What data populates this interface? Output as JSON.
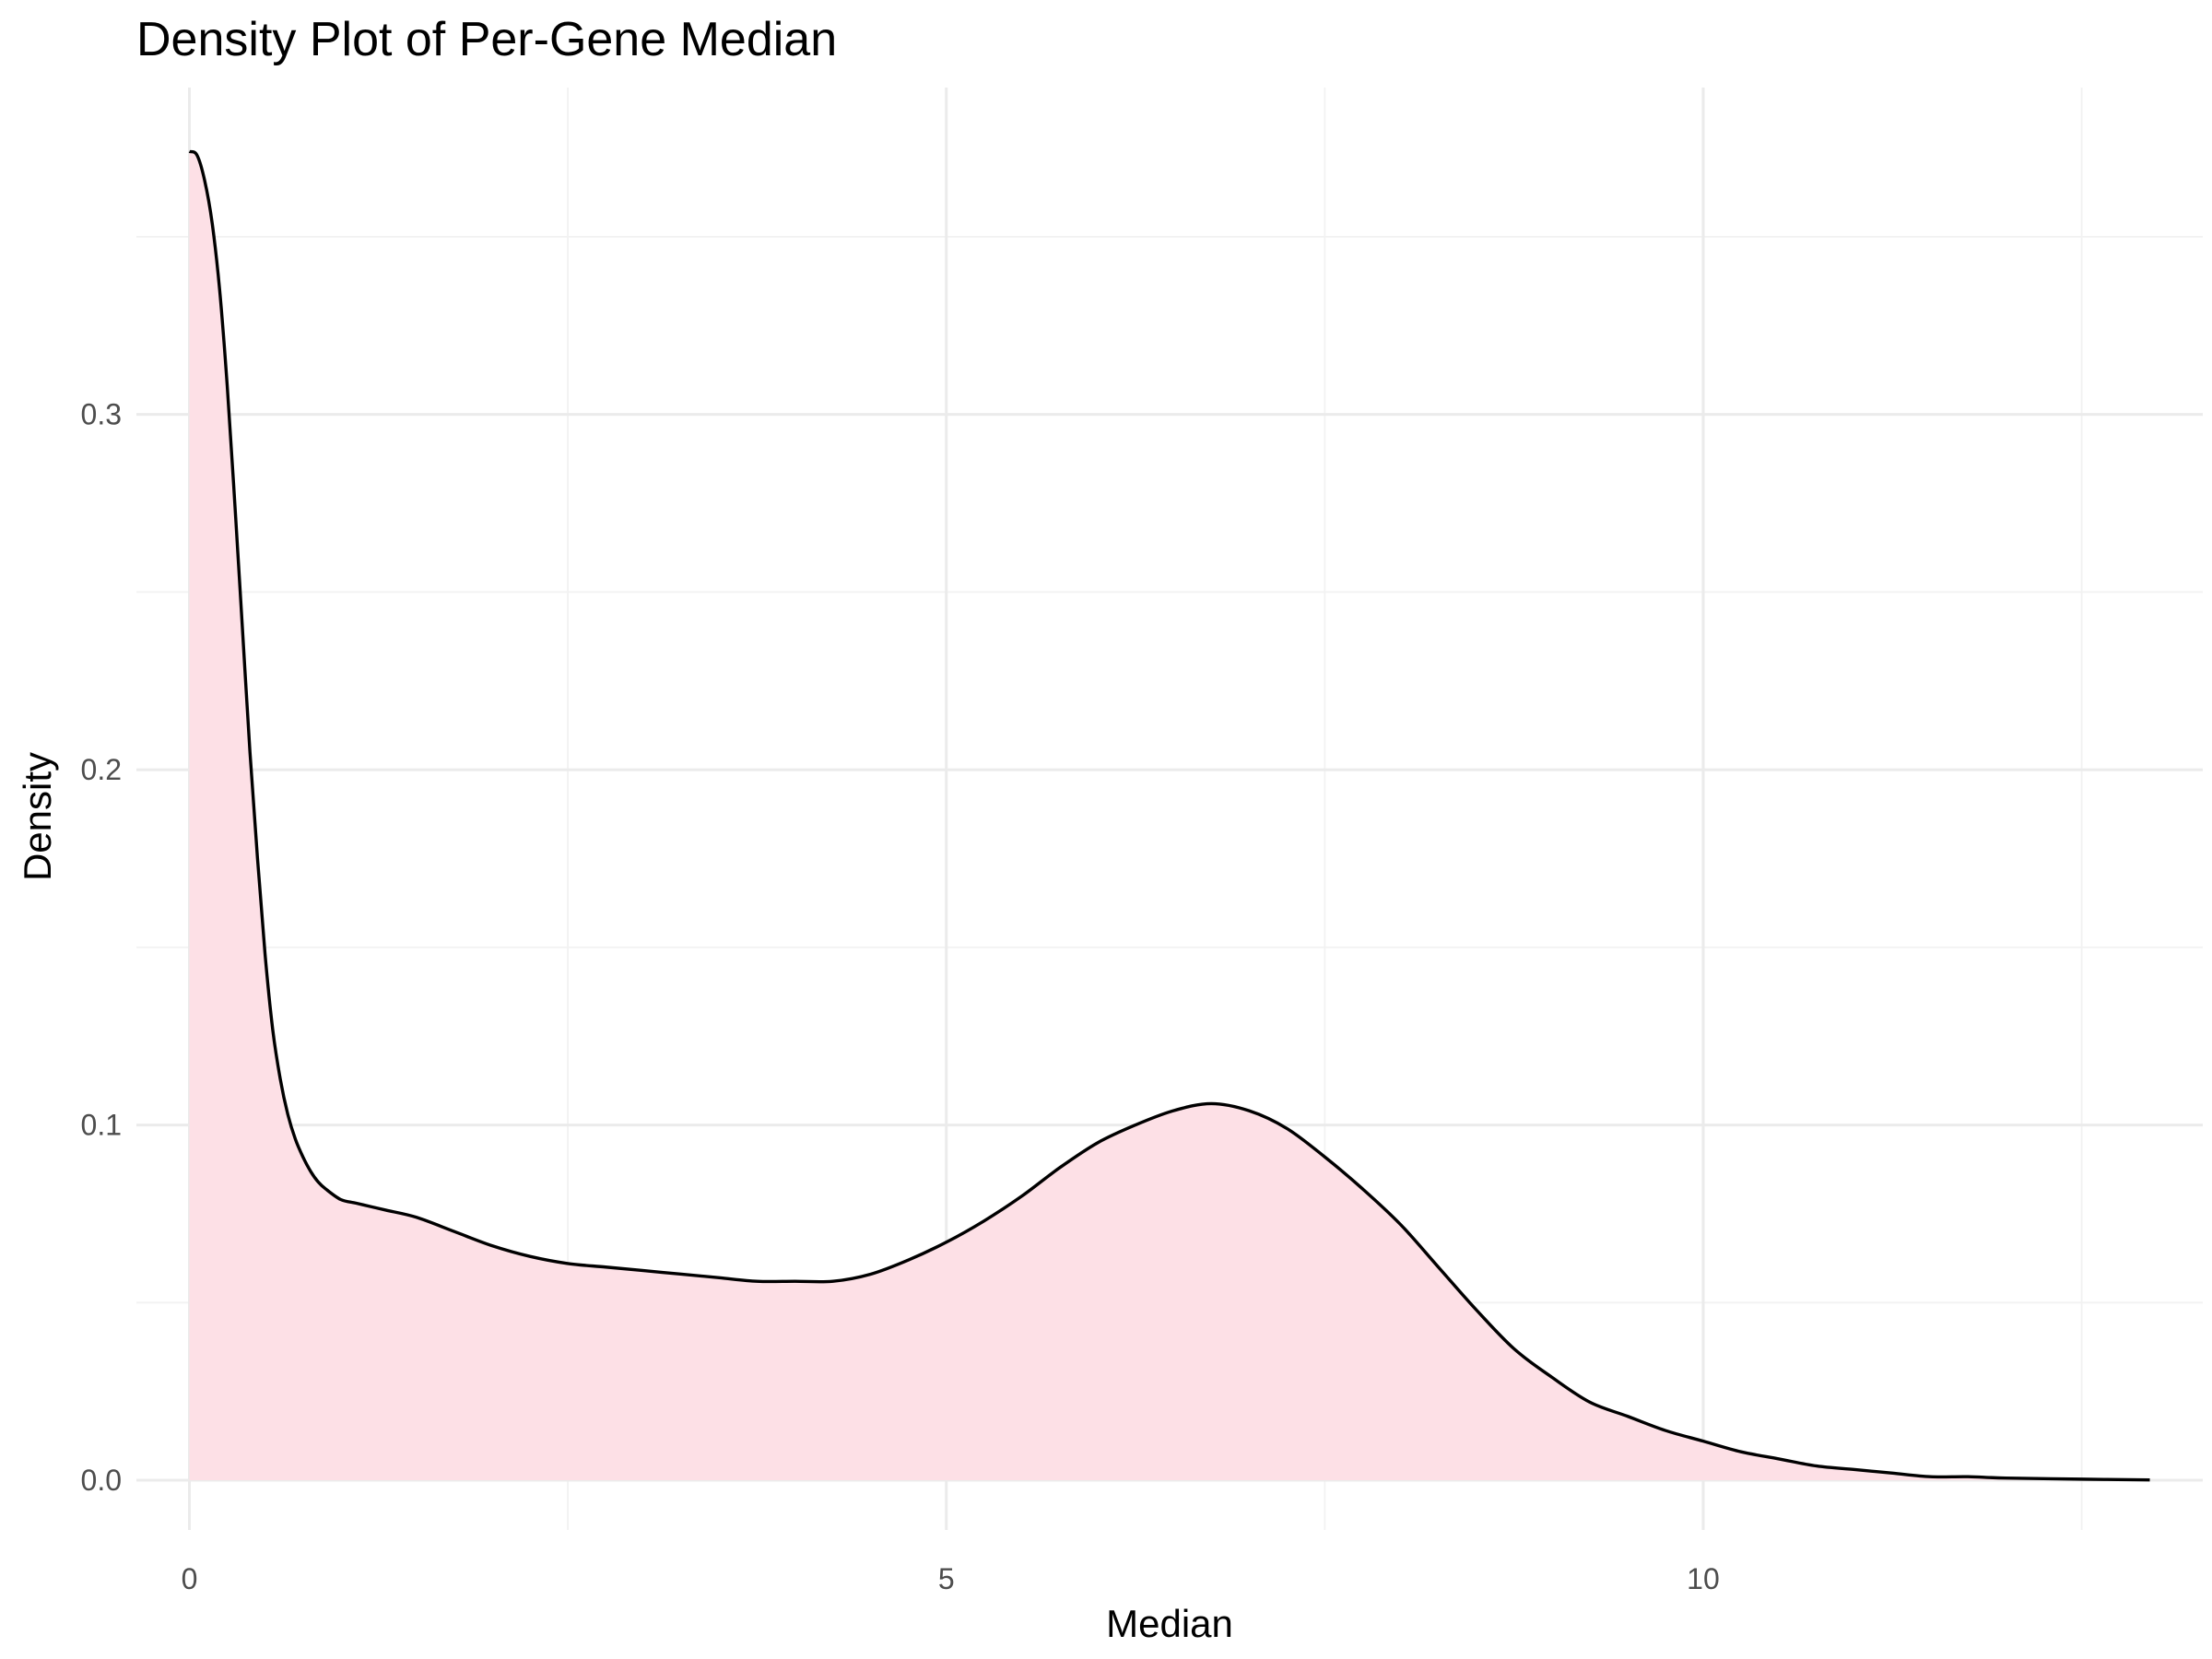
{
  "chart_data": {
    "type": "area",
    "title": "Density Plot of Per-Gene Median",
    "xlabel": "Median",
    "ylabel": "Density",
    "xlim": [
      -0.35,
      13.3
    ],
    "ylim": [
      -0.014,
      0.392
    ],
    "x_ticks": [
      0,
      5,
      10
    ],
    "x_tick_labels": [
      "0",
      "5",
      "10"
    ],
    "x_minor_ticks": [
      2.5,
      7.5,
      12.5
    ],
    "y_ticks": [
      0.0,
      0.1,
      0.2,
      0.3
    ],
    "y_tick_labels": [
      "0.0",
      "0.1",
      "0.2",
      "0.3"
    ],
    "y_minor_ticks": [
      0.05,
      0.15,
      0.25,
      0.35
    ],
    "grid": true,
    "legend": "none",
    "fill_color": "#fde0e6",
    "line_color": "#000000",
    "series": [
      {
        "x": [
          0.0,
          0.05,
          0.1,
          0.15,
          0.2,
          0.25,
          0.3,
          0.35,
          0.4,
          0.45,
          0.5,
          0.55,
          0.6,
          0.65,
          0.7,
          0.75,
          0.8,
          0.85,
          0.9,
          1.0,
          1.1,
          1.2,
          1.3,
          1.5,
          1.75,
          2.0,
          2.25,
          2.5,
          2.75,
          3.0,
          3.25,
          3.5,
          3.75,
          4.0,
          4.25,
          4.5,
          4.75,
          5.0,
          5.25,
          5.5,
          5.75,
          6.0,
          6.25,
          6.5,
          6.75,
          7.0,
          7.25,
          7.5,
          7.75,
          8.0,
          8.25,
          8.5,
          8.75,
          9.0,
          9.25,
          9.5,
          9.75,
          10.0,
          10.25,
          10.5,
          10.75,
          11.0,
          11.25,
          11.5,
          11.75,
          12.0,
          12.5,
          12.95
        ],
        "y": [
          0.374,
          0.373,
          0.366,
          0.354,
          0.335,
          0.308,
          0.275,
          0.24,
          0.205,
          0.175,
          0.148,
          0.127,
          0.113,
          0.103,
          0.096,
          0.091,
          0.087,
          0.084,
          0.082,
          0.079,
          0.078,
          0.077,
          0.076,
          0.074,
          0.07,
          0.066,
          0.063,
          0.061,
          0.06,
          0.059,
          0.058,
          0.057,
          0.056,
          0.056,
          0.056,
          0.058,
          0.062,
          0.067,
          0.073,
          0.08,
          0.088,
          0.095,
          0.1,
          0.104,
          0.106,
          0.104,
          0.099,
          0.091,
          0.082,
          0.072,
          0.06,
          0.048,
          0.037,
          0.029,
          0.022,
          0.018,
          0.014,
          0.011,
          0.008,
          0.006,
          0.004,
          0.003,
          0.002,
          0.001,
          0.001,
          0.0006,
          0.0003,
          0.0001
        ]
      }
    ]
  }
}
